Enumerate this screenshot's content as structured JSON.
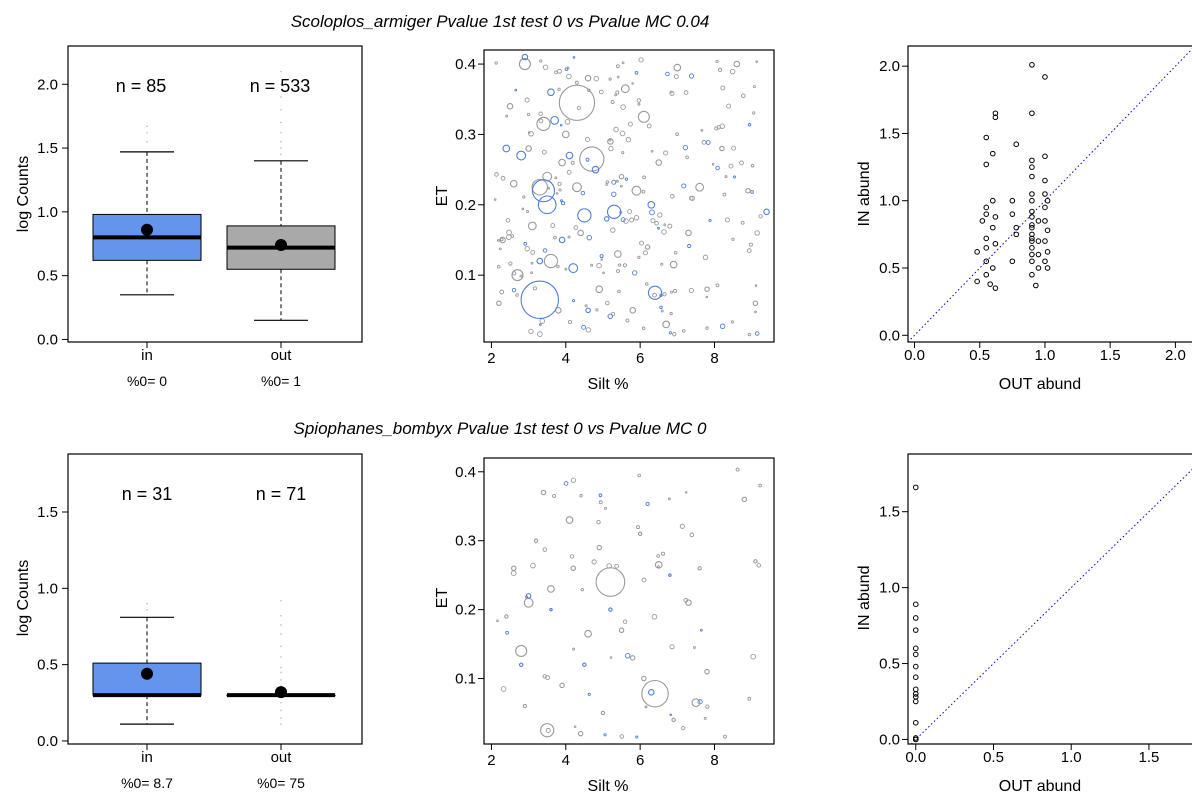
{
  "colors": {
    "in": "#6495ED",
    "out": "#A9A9A9",
    "in_stroke": "#4F7FD8",
    "out_stroke": "#9A9A9A",
    "diag": "#0000CD"
  },
  "chart_data": [
    {
      "title": "Scoloplos_armiger Pvalue 1st test 0 vs Pvalue MC 0.04",
      "boxplot": {
        "type": "box",
        "ylabel": "log Counts",
        "ylim": [
          -0.02,
          2.3
        ],
        "yticks": [
          "0.0",
          "0.5",
          "1.0",
          "1.5",
          "2.0"
        ],
        "categories": [
          "in",
          "out"
        ],
        "n_labels": [
          "n = 85",
          "n = 533"
        ],
        "zero_labels": [
          "%0= 0",
          "%0= 1"
        ],
        "boxes": [
          {
            "min": 0.35,
            "q1": 0.62,
            "median": 0.8,
            "q3": 0.98,
            "max": 1.47,
            "mean": 0.86,
            "outliers": [
              1.55,
              1.62,
              1.67
            ]
          },
          {
            "min": 0.15,
            "q1": 0.55,
            "median": 0.72,
            "q3": 0.89,
            "max": 1.4,
            "mean": 0.74,
            "outliers": [
              1.45,
              1.5,
              1.55,
              1.62,
              1.7,
              1.8,
              1.9,
              2.0,
              2.1
            ]
          }
        ]
      },
      "bubble": {
        "type": "scatter",
        "xlabel": "Silt %",
        "ylabel": "ET",
        "xlim": [
          1.8,
          9.6
        ],
        "ylim": [
          0.005,
          0.42
        ],
        "xticks": [
          "2",
          "4",
          "6",
          "8"
        ],
        "yticks": [
          "0.1",
          "0.2",
          "0.3",
          "0.4"
        ],
        "in_points": [
          [
            3.3,
            0.065,
            1.7
          ],
          [
            3.4,
            0.22,
            1.0
          ],
          [
            3.5,
            0.2,
            0.8
          ],
          [
            4.5,
            0.185,
            0.6
          ],
          [
            5.3,
            0.19,
            0.6
          ],
          [
            6.4,
            0.075,
            0.6
          ],
          [
            4.2,
            0.11,
            0.4
          ],
          [
            2.8,
            0.27,
            0.4
          ],
          [
            3.7,
            0.32,
            0.35
          ],
          [
            4.8,
            0.25,
            0.3
          ],
          [
            2.4,
            0.28,
            0.3
          ],
          [
            6.3,
            0.2,
            0.3
          ],
          [
            3.9,
            0.15,
            0.25
          ],
          [
            4.1,
            0.27,
            0.3
          ],
          [
            3.6,
            0.36,
            0.3
          ],
          [
            2.9,
            0.41,
            0.25
          ],
          [
            9.4,
            0.19,
            0.25
          ],
          [
            5.1,
            0.18,
            0.2
          ],
          [
            3.3,
            0.12,
            0.25
          ],
          [
            4.6,
            0.05,
            0.2
          ]
        ],
        "out_points": [
          [
            4.3,
            0.345,
            1.6
          ],
          [
            4.7,
            0.265,
            1.1
          ],
          [
            3.6,
            0.12,
            0.6
          ],
          [
            3.4,
            0.315,
            0.6
          ],
          [
            3.3,
            0.225,
            0.7
          ],
          [
            6.1,
            0.325,
            0.5
          ],
          [
            5.9,
            0.22,
            0.4
          ],
          [
            2.7,
            0.1,
            0.5
          ],
          [
            2.9,
            0.4,
            0.5
          ],
          [
            3.5,
            0.24,
            0.4
          ],
          [
            4.3,
            0.225,
            0.4
          ],
          [
            5.6,
            0.365,
            0.35
          ],
          [
            7.6,
            0.225,
            0.35
          ],
          [
            7.0,
            0.395,
            0.3
          ],
          [
            6.7,
            0.03,
            0.3
          ],
          [
            2.6,
            0.23,
            0.3
          ],
          [
            5.4,
            0.13,
            0.3
          ],
          [
            3.9,
            0.26,
            0.3
          ],
          [
            4.9,
            0.08,
            0.3
          ],
          [
            6.9,
            0.115,
            0.3
          ],
          [
            8.6,
            0.4,
            0.25
          ],
          [
            2.3,
            0.15,
            0.25
          ],
          [
            3.1,
            0.17,
            0.35
          ],
          [
            4.0,
            0.3,
            0.3
          ],
          [
            5.2,
            0.29,
            0.25
          ],
          [
            6.5,
            0.26,
            0.25
          ],
          [
            7.3,
            0.16,
            0.25
          ],
          [
            8.2,
            0.28,
            0.2
          ],
          [
            9.1,
            0.06,
            0.2
          ],
          [
            2.5,
            0.34,
            0.25
          ],
          [
            3.8,
            0.05,
            0.25
          ],
          [
            4.4,
            0.16,
            0.25
          ],
          [
            5.8,
            0.05,
            0.25
          ],
          [
            6.2,
            0.14,
            0.2
          ],
          [
            7.8,
            0.08,
            0.2
          ],
          [
            8.9,
            0.22,
            0.2
          ],
          [
            2.2,
            0.06,
            0.2
          ],
          [
            3.0,
            0.28,
            0.25
          ],
          [
            4.6,
            0.38,
            0.25
          ],
          [
            5.5,
            0.24,
            0.2
          ]
        ]
      },
      "abund": {
        "type": "scatter",
        "xlabel": "OUT abund",
        "ylabel": "IN abund",
        "xlim": [
          -0.05,
          2.25
        ],
        "ylim": [
          -0.05,
          2.15
        ],
        "xticks": [
          "0.0",
          "0.5",
          "1.0",
          "1.5",
          "2.0"
        ],
        "yticks": [
          "0.0",
          "0.5",
          "1.0",
          "1.5",
          "2.0"
        ],
        "points": [
          [
            0.48,
            0.4
          ],
          [
            0.48,
            0.62
          ],
          [
            0.52,
            0.85
          ],
          [
            0.55,
            0.45
          ],
          [
            0.55,
            0.55
          ],
          [
            0.55,
            0.65
          ],
          [
            0.55,
            0.72
          ],
          [
            0.55,
            0.9
          ],
          [
            0.55,
            0.95
          ],
          [
            0.55,
            1.27
          ],
          [
            0.55,
            1.47
          ],
          [
            0.58,
            0.38
          ],
          [
            0.6,
            0.5
          ],
          [
            0.6,
            0.8
          ],
          [
            0.6,
            1.0
          ],
          [
            0.62,
            0.35
          ],
          [
            0.62,
            0.68
          ],
          [
            0.62,
            0.88
          ],
          [
            0.62,
            1.65
          ],
          [
            0.62,
            1.62
          ],
          [
            0.6,
            1.35
          ],
          [
            0.75,
            0.55
          ],
          [
            0.75,
            0.9
          ],
          [
            0.75,
            1.0
          ],
          [
            0.78,
            0.75
          ],
          [
            0.78,
            0.8
          ],
          [
            0.78,
            1.42
          ],
          [
            0.9,
            0.45
          ],
          [
            0.9,
            0.55
          ],
          [
            0.9,
            0.6
          ],
          [
            0.9,
            0.65
          ],
          [
            0.9,
            0.7
          ],
          [
            0.9,
            0.72
          ],
          [
            0.9,
            0.75
          ],
          [
            0.9,
            0.8
          ],
          [
            0.9,
            0.82
          ],
          [
            0.9,
            0.88
          ],
          [
            0.9,
            0.92
          ],
          [
            0.9,
            1.0
          ],
          [
            0.9,
            1.05
          ],
          [
            0.9,
            1.18
          ],
          [
            0.9,
            1.25
          ],
          [
            0.9,
            1.3
          ],
          [
            0.9,
            1.65
          ],
          [
            0.9,
            2.01
          ],
          [
            0.93,
            0.37
          ],
          [
            0.95,
            0.5
          ],
          [
            0.95,
            0.6
          ],
          [
            0.95,
            0.7
          ],
          [
            0.95,
            0.85
          ],
          [
            1.0,
            0.55
          ],
          [
            1.0,
            0.7
          ],
          [
            1.0,
            0.85
          ],
          [
            1.0,
            0.95
          ],
          [
            1.0,
            1.05
          ],
          [
            1.0,
            1.15
          ],
          [
            1.0,
            1.33
          ],
          [
            1.0,
            1.92
          ],
          [
            1.02,
            0.5
          ],
          [
            1.02,
            0.62
          ],
          [
            1.02,
            0.78
          ],
          [
            1.02,
            1.0
          ]
        ]
      }
    },
    {
      "title": "Spiophanes_bombyx Pvalue 1st test 0 vs Pvalue MC 0",
      "boxplot": {
        "type": "box",
        "ylabel": "log Counts",
        "ylim": [
          -0.02,
          1.88
        ],
        "yticks": [
          "0.0",
          "0.5",
          "1.0",
          "1.5"
        ],
        "categories": [
          "in",
          "out"
        ],
        "n_labels": [
          "n = 31",
          "n = 71"
        ],
        "zero_labels": [
          "%0= 8.7",
          "%0= 75"
        ],
        "boxes": [
          {
            "min": 0.11,
            "q1": 0.3,
            "median": 0.3,
            "q3": 0.51,
            "max": 0.81,
            "mean": 0.44,
            "outliers": [
              0.86,
              0.9
            ]
          },
          {
            "min": 0.3,
            "q1": 0.3,
            "median": 0.3,
            "q3": 0.3,
            "max": 0.3,
            "mean": 0.32,
            "outliers": [
              0.11,
              0.15,
              0.2,
              0.25,
              0.36,
              0.4,
              0.45,
              0.48,
              0.55,
              0.62,
              0.7,
              0.76,
              0.82,
              0.92
            ]
          }
        ]
      },
      "bubble": {
        "type": "scatter",
        "xlabel": "Silt %",
        "ylabel": "ET",
        "xlim": [
          1.8,
          9.6
        ],
        "ylim": [
          0.005,
          0.42
        ],
        "xticks": [
          "2",
          "4",
          "6",
          "8"
        ],
        "yticks": [
          "0.1",
          "0.2",
          "0.3",
          "0.4"
        ],
        "in_points": [
          [
            6.3,
            0.08,
            0.25
          ],
          [
            3.0,
            0.22,
            0.2
          ],
          [
            4.5,
            0.12,
            0.15
          ],
          [
            2.8,
            0.12,
            0.15
          ],
          [
            5.2,
            0.2,
            0.15
          ],
          [
            3.6,
            0.2,
            0.1
          ],
          [
            6.8,
            0.25,
            0.1
          ]
        ],
        "out_points": [
          [
            6.4,
            0.078,
            1.2
          ],
          [
            5.2,
            0.24,
            1.3
          ],
          [
            3.5,
            0.025,
            0.6
          ],
          [
            2.8,
            0.14,
            0.5
          ],
          [
            3.0,
            0.21,
            0.4
          ],
          [
            7.5,
            0.065,
            0.35
          ],
          [
            6.5,
            0.265,
            0.3
          ],
          [
            4.6,
            0.165,
            0.3
          ],
          [
            3.6,
            0.23,
            0.3
          ],
          [
            4.1,
            0.33,
            0.3
          ],
          [
            7.3,
            0.21,
            0.25
          ],
          [
            4.9,
            0.29,
            0.2
          ],
          [
            5.8,
            0.13,
            0.2
          ],
          [
            3.9,
            0.09,
            0.2
          ],
          [
            4.4,
            0.02,
            0.2
          ],
          [
            2.6,
            0.26,
            0.2
          ],
          [
            3.4,
            0.37,
            0.2
          ],
          [
            5.5,
            0.17,
            0.2
          ],
          [
            6.1,
            0.1,
            0.2
          ],
          [
            7.8,
            0.11,
            0.2
          ],
          [
            8.8,
            0.36,
            0.2
          ],
          [
            2.4,
            0.19,
            0.15
          ],
          [
            3.2,
            0.3,
            0.15
          ],
          [
            4.2,
            0.26,
            0.2
          ],
          [
            5.0,
            0.05,
            0.15
          ],
          [
            6.0,
            0.31,
            0.15
          ],
          [
            6.9,
            0.04,
            0.15
          ],
          [
            7.6,
            0.26,
            0.15
          ],
          [
            9.1,
            0.27,
            0.15
          ],
          [
            2.9,
            0.06,
            0.15
          ]
        ]
      },
      "abund": {
        "type": "scatter",
        "xlabel": "OUT abund",
        "ylabel": "IN abund",
        "xlim": [
          -0.05,
          1.88
        ],
        "ylim": [
          -0.03,
          1.88
        ],
        "xticks": [
          "0.0",
          "0.5",
          "1.0",
          "1.5"
        ],
        "yticks": [
          "0.0",
          "0.5",
          "1.0",
          "1.5"
        ],
        "points": [
          [
            0.0,
            0.0
          ],
          [
            0.0,
            0.01
          ],
          [
            0.0,
            0.0
          ],
          [
            0.0,
            0.11
          ],
          [
            0.0,
            0.25
          ],
          [
            0.0,
            0.28
          ],
          [
            0.0,
            0.3
          ],
          [
            0.0,
            0.33
          ],
          [
            0.0,
            0.41
          ],
          [
            0.0,
            0.48
          ],
          [
            0.0,
            0.56
          ],
          [
            0.0,
            0.6
          ],
          [
            0.0,
            0.72
          ],
          [
            0.0,
            0.8
          ],
          [
            0.0,
            0.89
          ],
          [
            0.0,
            1.66
          ]
        ]
      }
    }
  ]
}
